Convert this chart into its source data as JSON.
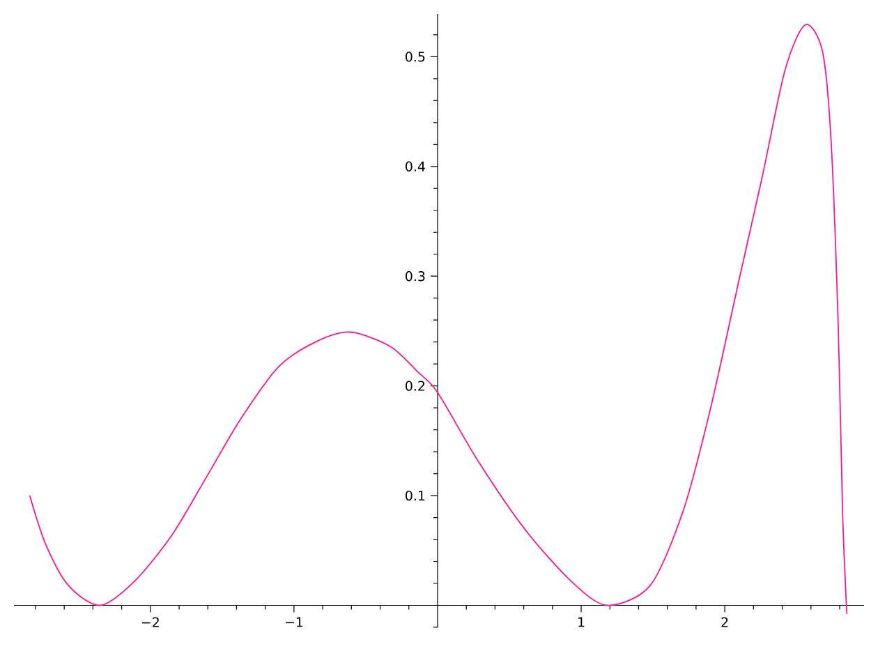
{
  "chart_data": {
    "type": "line",
    "xlim": [
      -2.95,
      2.97
    ],
    "ylim": [
      -0.02,
      0.539
    ],
    "xticks": [
      {
        "value": -2,
        "label": "−2"
      },
      {
        "value": -1,
        "label": "−1"
      },
      1,
      2
    ],
    "yticks": [
      0.1,
      0.2,
      0.3,
      0.4,
      0.5
    ],
    "x": [
      -2.84,
      -2.73,
      -2.57,
      -2.35,
      -2.11,
      -1.85,
      -1.6,
      -1.37,
      -1.11,
      -0.85,
      -0.61,
      -0.33,
      -0.14,
      0.0,
      0.28,
      0.61,
      0.93,
      1.18,
      1.48,
      1.71,
      1.9,
      2.1,
      2.26,
      2.42,
      2.56,
      2.68,
      2.74,
      2.79,
      2.82,
      2.85
    ],
    "series": [
      {
        "color": "#ff1493",
        "values": [
          0.1,
          0.056,
          0.018,
          0.0,
          0.022,
          0.064,
          0.119,
          0.17,
          0.217,
          0.24,
          0.249,
          0.236,
          0.213,
          0.194,
          0.132,
          0.069,
          0.022,
          0.0,
          0.018,
          0.086,
          0.179,
          0.297,
          0.39,
          0.488,
          0.529,
          0.505,
          0.424,
          0.255,
          0.086,
          -0.008
        ]
      }
    ],
    "grid": false,
    "marker": "none",
    "line_style": "solid"
  }
}
